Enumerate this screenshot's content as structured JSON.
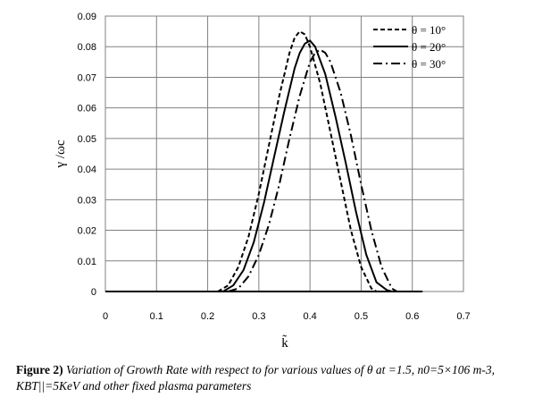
{
  "chart_data": {
    "type": "line",
    "title": "",
    "xlabel": "k̃",
    "ylabel": "γ /ωc",
    "xlim": [
      0,
      0.7
    ],
    "ylim": [
      0,
      0.09
    ],
    "x_ticks": [
      "0",
      "0.1",
      "0.2",
      "0.3",
      "0.4",
      "0.5",
      "0.6",
      "0.7"
    ],
    "y_ticks": [
      "0",
      "0.01",
      "0.02",
      "0.03",
      "0.04",
      "0.05",
      "0.06",
      "0.07",
      "0.08",
      "0.09"
    ],
    "grid": true,
    "legend_position": "top-right",
    "series": [
      {
        "name": "θ = 10°",
        "style": "dashed",
        "x": [
          0.22,
          0.24,
          0.26,
          0.28,
          0.3,
          0.32,
          0.34,
          0.36,
          0.37,
          0.38,
          0.39,
          0.4,
          0.42,
          0.44,
          0.46,
          0.48,
          0.5,
          0.52,
          0.53
        ],
        "y": [
          0,
          0.002,
          0.008,
          0.018,
          0.032,
          0.048,
          0.064,
          0.078,
          0.083,
          0.085,
          0.084,
          0.08,
          0.068,
          0.052,
          0.036,
          0.02,
          0.008,
          0.001,
          0
        ]
      },
      {
        "name": "θ = 20°",
        "style": "solid",
        "x": [
          0.23,
          0.25,
          0.27,
          0.29,
          0.31,
          0.33,
          0.35,
          0.37,
          0.38,
          0.39,
          0.4,
          0.41,
          0.43,
          0.45,
          0.47,
          0.49,
          0.51,
          0.53,
          0.55,
          0.56
        ],
        "y": [
          0,
          0.002,
          0.007,
          0.016,
          0.029,
          0.044,
          0.059,
          0.073,
          0.078,
          0.081,
          0.082,
          0.08,
          0.071,
          0.057,
          0.042,
          0.026,
          0.012,
          0.003,
          0.0005,
          0
        ]
      },
      {
        "name": "θ = 30°",
        "style": "dash-dot",
        "x": [
          0.24,
          0.26,
          0.28,
          0.3,
          0.32,
          0.34,
          0.36,
          0.38,
          0.4,
          0.41,
          0.42,
          0.43,
          0.44,
          0.46,
          0.48,
          0.5,
          0.52,
          0.54,
          0.56,
          0.57
        ],
        "y": [
          0,
          0.001,
          0.005,
          0.012,
          0.022,
          0.035,
          0.05,
          0.064,
          0.075,
          0.078,
          0.079,
          0.078,
          0.075,
          0.065,
          0.051,
          0.035,
          0.02,
          0.008,
          0.001,
          0
        ]
      },
      {
        "name": "",
        "style": "solid-baseline",
        "x": [
          0,
          0.62
        ],
        "y": [
          0,
          0
        ]
      }
    ]
  },
  "caption": {
    "label": "Figure 2)",
    "text": "Variation of Growth Rate with respect to for various values of θ at =1.5, n0=5×106 m-3, KBT||=5KeV and other fixed plasma parameters"
  }
}
